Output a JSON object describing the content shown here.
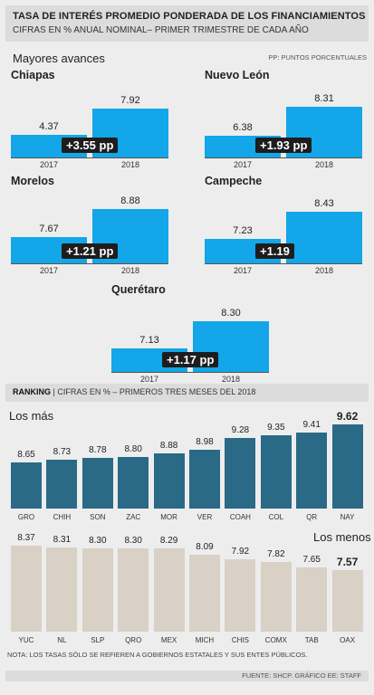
{
  "header": {
    "title": "TASA DE INTERÉS PROMEDIO PONDERADA DE LOS FINANCIAMIENTOS",
    "subtitle": "CIFRAS EN % ANUAL NOMINAL– PRIMER TRIMESTRE DE CADA AÑO"
  },
  "advances": {
    "section_title": "Mayores avances",
    "pp_note": "PP: PUNTOS PORCENTUALES",
    "year_labels": [
      "2017",
      "2018"
    ]
  },
  "ranking": {
    "label": "RANKING",
    "description": "| CIFRAS EN % – PRIMEROS TRES MESES DEL 2018"
  },
  "footer": {
    "note": "NOTA: LOS TASAS SÓLO SE REFIEREN A GOBIERNOS ESTATALES Y SUS ENTES PÚBLICOS.",
    "source": "FUENTE: SHCP. GRÁFICO EE: STAFF"
  },
  "colors": {
    "advance_bar": "#13a6e8",
    "top_bar": "#2a6a86",
    "bottom_bar": "#d9d0c6",
    "badge": "#1d1d1d"
  },
  "chart_data": [
    {
      "type": "bar",
      "title": "Chiapas",
      "categories": [
        "2017",
        "2018"
      ],
      "values": [
        4.37,
        7.92
      ],
      "value_labels": [
        "4.37",
        "7.92"
      ],
      "annotation": "+3.55 pp"
    },
    {
      "type": "bar",
      "title": "Nuevo León",
      "categories": [
        "2017",
        "2018"
      ],
      "values": [
        6.38,
        8.31
      ],
      "value_labels": [
        "6.38",
        "8.31"
      ],
      "annotation": "+1.93 pp"
    },
    {
      "type": "bar",
      "title": "Morelos",
      "categories": [
        "2017",
        "2018"
      ],
      "values": [
        7.67,
        8.88
      ],
      "value_labels": [
        "7.67",
        "8.88"
      ],
      "annotation": "+1.21 pp"
    },
    {
      "type": "bar",
      "title": "Campeche",
      "categories": [
        "2017",
        "2018"
      ],
      "values": [
        7.23,
        8.43
      ],
      "value_labels": [
        "7.23",
        "8.43"
      ],
      "annotation": "+1.19"
    },
    {
      "type": "bar",
      "title": "Querétaro",
      "categories": [
        "2017",
        "2018"
      ],
      "values": [
        7.13,
        8.3
      ],
      "value_labels": [
        "7.13",
        "8.30"
      ],
      "annotation": "+1.17 pp"
    },
    {
      "type": "bar",
      "title": "Los más",
      "categories": [
        "GRO",
        "CHIH",
        "SON",
        "ZAC",
        "MOR",
        "VER",
        "COAH",
        "COL",
        "QR",
        "NAY"
      ],
      "values": [
        8.65,
        8.73,
        8.78,
        8.8,
        8.88,
        8.98,
        9.28,
        9.35,
        9.41,
        9.62
      ],
      "value_labels": [
        "8.65",
        "8.73",
        "8.78",
        "8.80",
        "8.88",
        "8.98",
        "9.28",
        "9.35",
        "9.41",
        "9.62"
      ]
    },
    {
      "type": "bar",
      "title": "Los menos",
      "categories": [
        "YUC",
        "NL",
        "SLP",
        "QRO",
        "MEX",
        "MICH",
        "CHIS",
        "COMX",
        "TAB",
        "OAX"
      ],
      "values": [
        8.37,
        8.31,
        8.3,
        8.3,
        8.29,
        8.09,
        7.92,
        7.82,
        7.65,
        7.57
      ],
      "value_labels": [
        "8.37",
        "8.31",
        "8.30",
        "8.30",
        "8.29",
        "8.09",
        "7.92",
        "7.82",
        "7.65",
        "7.57"
      ]
    }
  ]
}
